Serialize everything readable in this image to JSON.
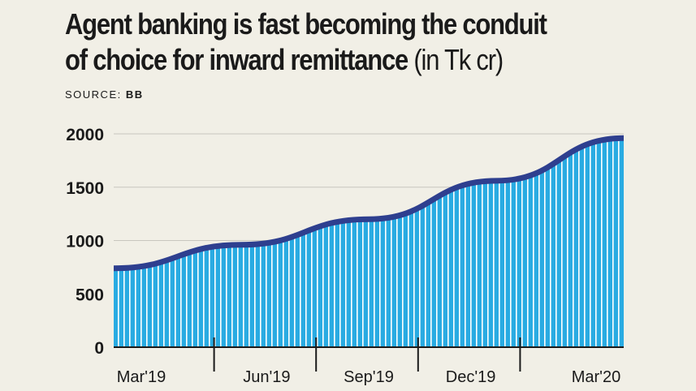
{
  "header": {
    "title_line1": "Agent banking is fast becoming the conduit",
    "title_line2": "of choice for inward remittance",
    "title_unit": "(in Tk cr)",
    "source_label": "SOURCE:",
    "source_value": "BB"
  },
  "colors": {
    "area_fill": "#29abe2",
    "stripe": "#ffffff",
    "line": "#2e3f8f",
    "gridline": "#c8c6be",
    "axis": "#1a1a1a"
  },
  "chart_data": {
    "type": "area",
    "title": "Agent banking is fast becoming the conduit of choice for inward remittance (in Tk cr)",
    "xlabel": "",
    "ylabel": "",
    "categories": [
      "Mar'19",
      "Jun'19",
      "Sep'19",
      "Dec'19",
      "Mar'20"
    ],
    "x": [
      "Mar'19",
      "Jun'19",
      "Sep'19",
      "Dec'19",
      "Mar'20"
    ],
    "series": [
      {
        "values": [
          740,
          960,
          1200,
          1560,
          1960
        ]
      }
    ],
    "ylim": [
      0,
      2000
    ],
    "yticks": [
      0,
      500,
      1000,
      1500,
      2000
    ],
    "ytick_labels": [
      "0",
      "500",
      "1000",
      "1500",
      "2000"
    ],
    "grid": true,
    "legend": "none"
  }
}
